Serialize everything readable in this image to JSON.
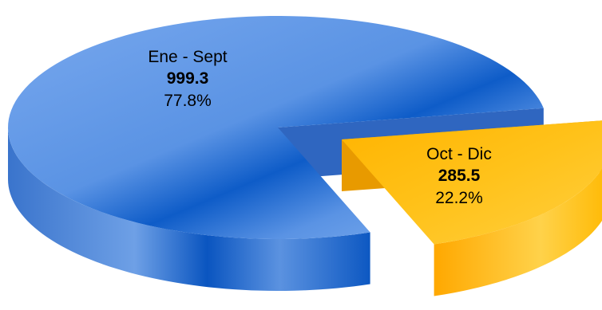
{
  "chart_data": {
    "type": "pie",
    "title": "",
    "slices": [
      {
        "label": "Ene - Sept",
        "value": 999.3,
        "value_label": "999.3",
        "percent_label": "77.8%",
        "color": "#4a86dc"
      },
      {
        "label": "Oct - Dic",
        "value": 285.5,
        "value_label": "285.5",
        "percent_label": "22.2%",
        "color": "#ffb000"
      }
    ],
    "style": "3d-exploded",
    "legend": "none"
  }
}
